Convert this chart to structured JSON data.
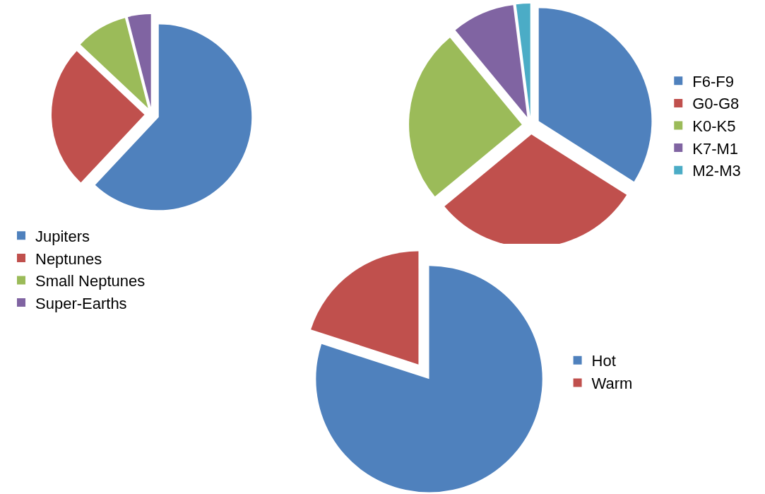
{
  "chart_data": [
    {
      "type": "pie",
      "categories": [
        "Jupiters",
        "Neptunes",
        "Small Neptunes",
        "Super-Earths"
      ],
      "values": [
        62,
        25,
        9,
        4
      ],
      "colors": [
        "#4f81bd",
        "#c0504d",
        "#9bbb59",
        "#8064a2"
      ],
      "legend": "bottom"
    },
    {
      "type": "pie",
      "categories": [
        "F6-F9",
        "G0-G8",
        "K0-K5",
        "K7-M1",
        "M2-M3"
      ],
      "values": [
        34,
        30,
        25,
        9,
        2
      ],
      "colors": [
        "#4f81bd",
        "#c0504d",
        "#9bbb59",
        "#8064a2",
        "#4bacc6"
      ],
      "legend": "right"
    },
    {
      "type": "pie",
      "categories": [
        "Hot",
        "Warm"
      ],
      "values": [
        80,
        20
      ],
      "colors": [
        "#4f81bd",
        "#c0504d"
      ],
      "legend": "right"
    }
  ]
}
